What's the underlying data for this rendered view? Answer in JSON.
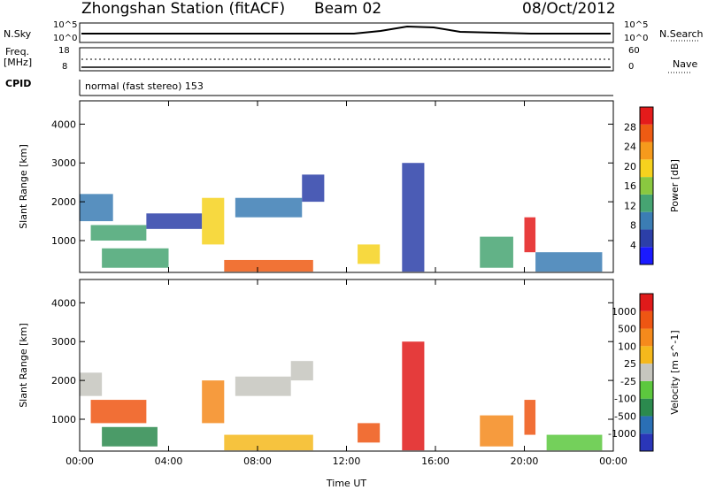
{
  "header": {
    "station": "Zhongshan Station (fitACF)",
    "beam": "Beam 02",
    "date": "08/Oct/2012"
  },
  "status": {
    "nsky_label": "N.Sky",
    "nsky_ticks": [
      "10^5",
      "10^0"
    ],
    "nsearch_label": "N.Search",
    "nsearch_ticks": [
      "10^5",
      "10^0"
    ],
    "freq_label_1": "Freq.",
    "freq_label_2": "[MHz]",
    "freq_ticks": [
      "18",
      "8"
    ],
    "nave_label": "Nave",
    "nave_ticks": [
      "60",
      "0"
    ],
    "cpid_label": "CPID",
    "cpid_text": "normal (fast stereo) 153"
  },
  "chart_data": [
    {
      "type": "heatmap",
      "name": "power",
      "ylabel": "Slant Range [km]",
      "y_ticks": [
        1000,
        2000,
        3000,
        4000
      ],
      "ylim": [
        180,
        4600
      ],
      "xlim": [
        0,
        24
      ],
      "colorbar_label": "Power [dB]",
      "colorbar_ticks": [
        "28",
        "24",
        "20",
        "16",
        "12",
        "8",
        "4"
      ],
      "colors": [
        "#1a1aff",
        "#2c3fa8",
        "#3b7db4",
        "#46a472",
        "#8ac840",
        "#f6d21e",
        "#f59a1c",
        "#ee5b13",
        "#e41b1b"
      ],
      "regions": [
        {
          "t0": 0.0,
          "t1": 1.5,
          "r0": 1500,
          "r1": 2200,
          "level": 2
        },
        {
          "t0": 0.5,
          "t1": 3.0,
          "r0": 1000,
          "r1": 1400,
          "level": 3
        },
        {
          "t0": 1.0,
          "t1": 4.0,
          "r0": 300,
          "r1": 800,
          "level": 3
        },
        {
          "t0": 3.0,
          "t1": 5.5,
          "r0": 1300,
          "r1": 1700,
          "level": 1
        },
        {
          "t0": 5.5,
          "t1": 6.5,
          "r0": 900,
          "r1": 2100,
          "level": 5
        },
        {
          "t0": 6.5,
          "t1": 10.5,
          "r0": 200,
          "r1": 500,
          "level": 7
        },
        {
          "t0": 7.0,
          "t1": 10.0,
          "r0": 1600,
          "r1": 2100,
          "level": 2
        },
        {
          "t0": 10.0,
          "t1": 11.0,
          "r0": 2000,
          "r1": 2700,
          "level": 1
        },
        {
          "t0": 12.5,
          "t1": 13.5,
          "r0": 400,
          "r1": 900,
          "level": 5
        },
        {
          "t0": 14.5,
          "t1": 15.5,
          "r0": 200,
          "r1": 3000,
          "level": 1
        },
        {
          "t0": 18.0,
          "t1": 19.5,
          "r0": 300,
          "r1": 1100,
          "level": 3
        },
        {
          "t0": 20.0,
          "t1": 20.5,
          "r0": 700,
          "r1": 1600,
          "level": 8
        },
        {
          "t0": 20.5,
          "t1": 23.5,
          "r0": 200,
          "r1": 700,
          "level": 2
        }
      ]
    },
    {
      "type": "heatmap",
      "name": "velocity",
      "ylabel": "Slant Range [km]",
      "y_ticks": [
        1000,
        2000,
        3000,
        4000
      ],
      "ylim": [
        180,
        4600
      ],
      "xlim": [
        0,
        24
      ],
      "x_ticks": [
        "00:00",
        "04:00",
        "08:00",
        "12:00",
        "16:00",
        "20:00",
        "00:00"
      ],
      "xlabel": "Time UT",
      "colorbar_label": "Velocity [m s^-1]",
      "colorbar_ticks": [
        "1000",
        "500",
        "100",
        "25",
        "-25",
        "-100",
        "-500",
        "-1000"
      ],
      "colors": [
        "#2a36b8",
        "#2a6fb5",
        "#2b8a4e",
        "#5cc83e",
        "#c6c6be",
        "#f5b81c",
        "#f58a1c",
        "#ee5613",
        "#e01a1a"
      ],
      "regions": [
        {
          "t0": 0.0,
          "t1": 1.0,
          "r0": 1600,
          "r1": 2200,
          "level": 4
        },
        {
          "t0": 0.5,
          "t1": 3.0,
          "r0": 900,
          "r1": 1500,
          "level": 7
        },
        {
          "t0": 1.0,
          "t1": 3.5,
          "r0": 300,
          "r1": 800,
          "level": 2
        },
        {
          "t0": 5.5,
          "t1": 6.5,
          "r0": 900,
          "r1": 2000,
          "level": 6
        },
        {
          "t0": 6.5,
          "t1": 10.5,
          "r0": 200,
          "r1": 600,
          "level": 5
        },
        {
          "t0": 7.0,
          "t1": 9.5,
          "r0": 1600,
          "r1": 2100,
          "level": 4
        },
        {
          "t0": 9.5,
          "t1": 10.5,
          "r0": 2000,
          "r1": 2500,
          "level": 4
        },
        {
          "t0": 12.5,
          "t1": 13.5,
          "r0": 400,
          "r1": 900,
          "level": 7
        },
        {
          "t0": 14.5,
          "t1": 15.5,
          "r0": 200,
          "r1": 3000,
          "level": 8
        },
        {
          "t0": 18.0,
          "t1": 19.5,
          "r0": 300,
          "r1": 1100,
          "level": 6
        },
        {
          "t0": 20.0,
          "t1": 20.5,
          "r0": 600,
          "r1": 1500,
          "level": 7
        },
        {
          "t0": 21.0,
          "t1": 23.5,
          "r0": 200,
          "r1": 600,
          "level": 3
        }
      ]
    }
  ]
}
